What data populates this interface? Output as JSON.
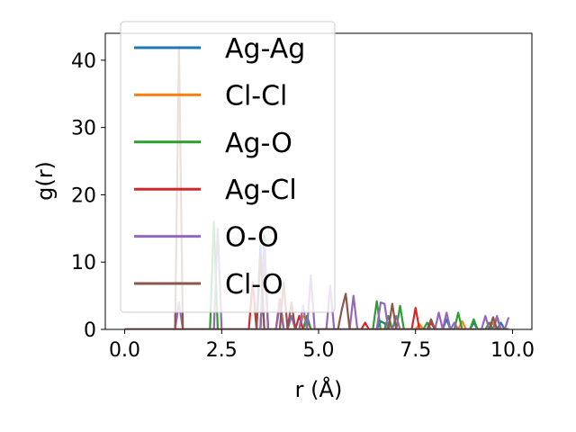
{
  "chart_data": {
    "type": "line",
    "title": "",
    "xlabel": "r (Å)",
    "ylabel": "g(r)",
    "xlim": [
      -0.5,
      10.5
    ],
    "ylim": [
      0,
      44
    ],
    "xticks": [
      0.0,
      2.5,
      5.0,
      7.5,
      10.0
    ],
    "xtick_labels": [
      "0.0",
      "2.5",
      "5.0",
      "7.5",
      "10.0"
    ],
    "yticks": [
      0,
      10,
      20,
      30,
      40
    ],
    "ytick_labels": [
      "0",
      "10",
      "20",
      "30",
      "40"
    ],
    "grid": false,
    "legend_position": "upper-left",
    "bin_width": 0.1,
    "series": [
      {
        "name": "Ag-Ag",
        "color": "#1f77b4",
        "peaks": [
          [
            3.5,
            12.5
          ],
          [
            4.7,
            2.0
          ],
          [
            6.6,
            1.2
          ],
          [
            6.7,
            0.9
          ],
          [
            8.3,
            1.5
          ],
          [
            9.0,
            1.0
          ],
          [
            9.7,
            1.0
          ]
        ]
      },
      {
        "name": "Cl-Cl",
        "color": "#ff7f0e",
        "peaks": [
          [
            3.6,
            10.0
          ],
          [
            4.6,
            2.0
          ],
          [
            4.7,
            1.5
          ],
          [
            6.8,
            1.0
          ],
          [
            7.6,
            0.8
          ],
          [
            8.7,
            1.2
          ],
          [
            9.5,
            1.0
          ]
        ]
      },
      {
        "name": "Ag-O",
        "color": "#2ca02c",
        "peaks": [
          [
            2.3,
            16.0
          ],
          [
            3.6,
            14.0
          ],
          [
            4.7,
            2.0
          ],
          [
            6.5,
            4.2
          ],
          [
            6.8,
            2.0
          ],
          [
            7.1,
            3.5
          ],
          [
            7.8,
            1.0
          ],
          [
            8.6,
            2.5
          ],
          [
            9.0,
            1.5
          ],
          [
            9.4,
            1.0
          ]
        ]
      },
      {
        "name": "Ag-Cl",
        "color": "#d62728",
        "peaks": [
          [
            3.3,
            7.0
          ],
          [
            4.0,
            4.5
          ],
          [
            4.5,
            2.0
          ],
          [
            6.2,
            1.0
          ],
          [
            7.5,
            3.2
          ],
          [
            7.9,
            1.0
          ],
          [
            9.6,
            1.8
          ]
        ]
      },
      {
        "name": "O-O",
        "color": "#9467bd",
        "peaks": [
          [
            1.4,
            4.0
          ],
          [
            2.4,
            15.0
          ],
          [
            3.6,
            13.0
          ],
          [
            4.0,
            3.5
          ],
          [
            4.3,
            2.0
          ],
          [
            4.6,
            3.5
          ],
          [
            4.8,
            8.0
          ],
          [
            5.3,
            6.5
          ],
          [
            5.9,
            5.0
          ],
          [
            6.6,
            4.0
          ],
          [
            6.7,
            3.8
          ],
          [
            7.0,
            2.0
          ],
          [
            8.1,
            2.5
          ],
          [
            8.3,
            2.5
          ],
          [
            8.5,
            1.0
          ],
          [
            9.3,
            2.0
          ],
          [
            9.6,
            2.0
          ],
          [
            9.9,
            1.8
          ]
        ]
      },
      {
        "name": "Cl-O",
        "color": "#8c564b",
        "peaks": [
          [
            1.4,
            42.0
          ],
          [
            3.5,
            11.0
          ],
          [
            4.1,
            7.0
          ],
          [
            4.3,
            4.0
          ],
          [
            5.6,
            3.0
          ],
          [
            5.7,
            5.3
          ],
          [
            6.9,
            3.8
          ],
          [
            7.9,
            1.5
          ],
          [
            9.5,
            1.8
          ]
        ]
      }
    ]
  }
}
